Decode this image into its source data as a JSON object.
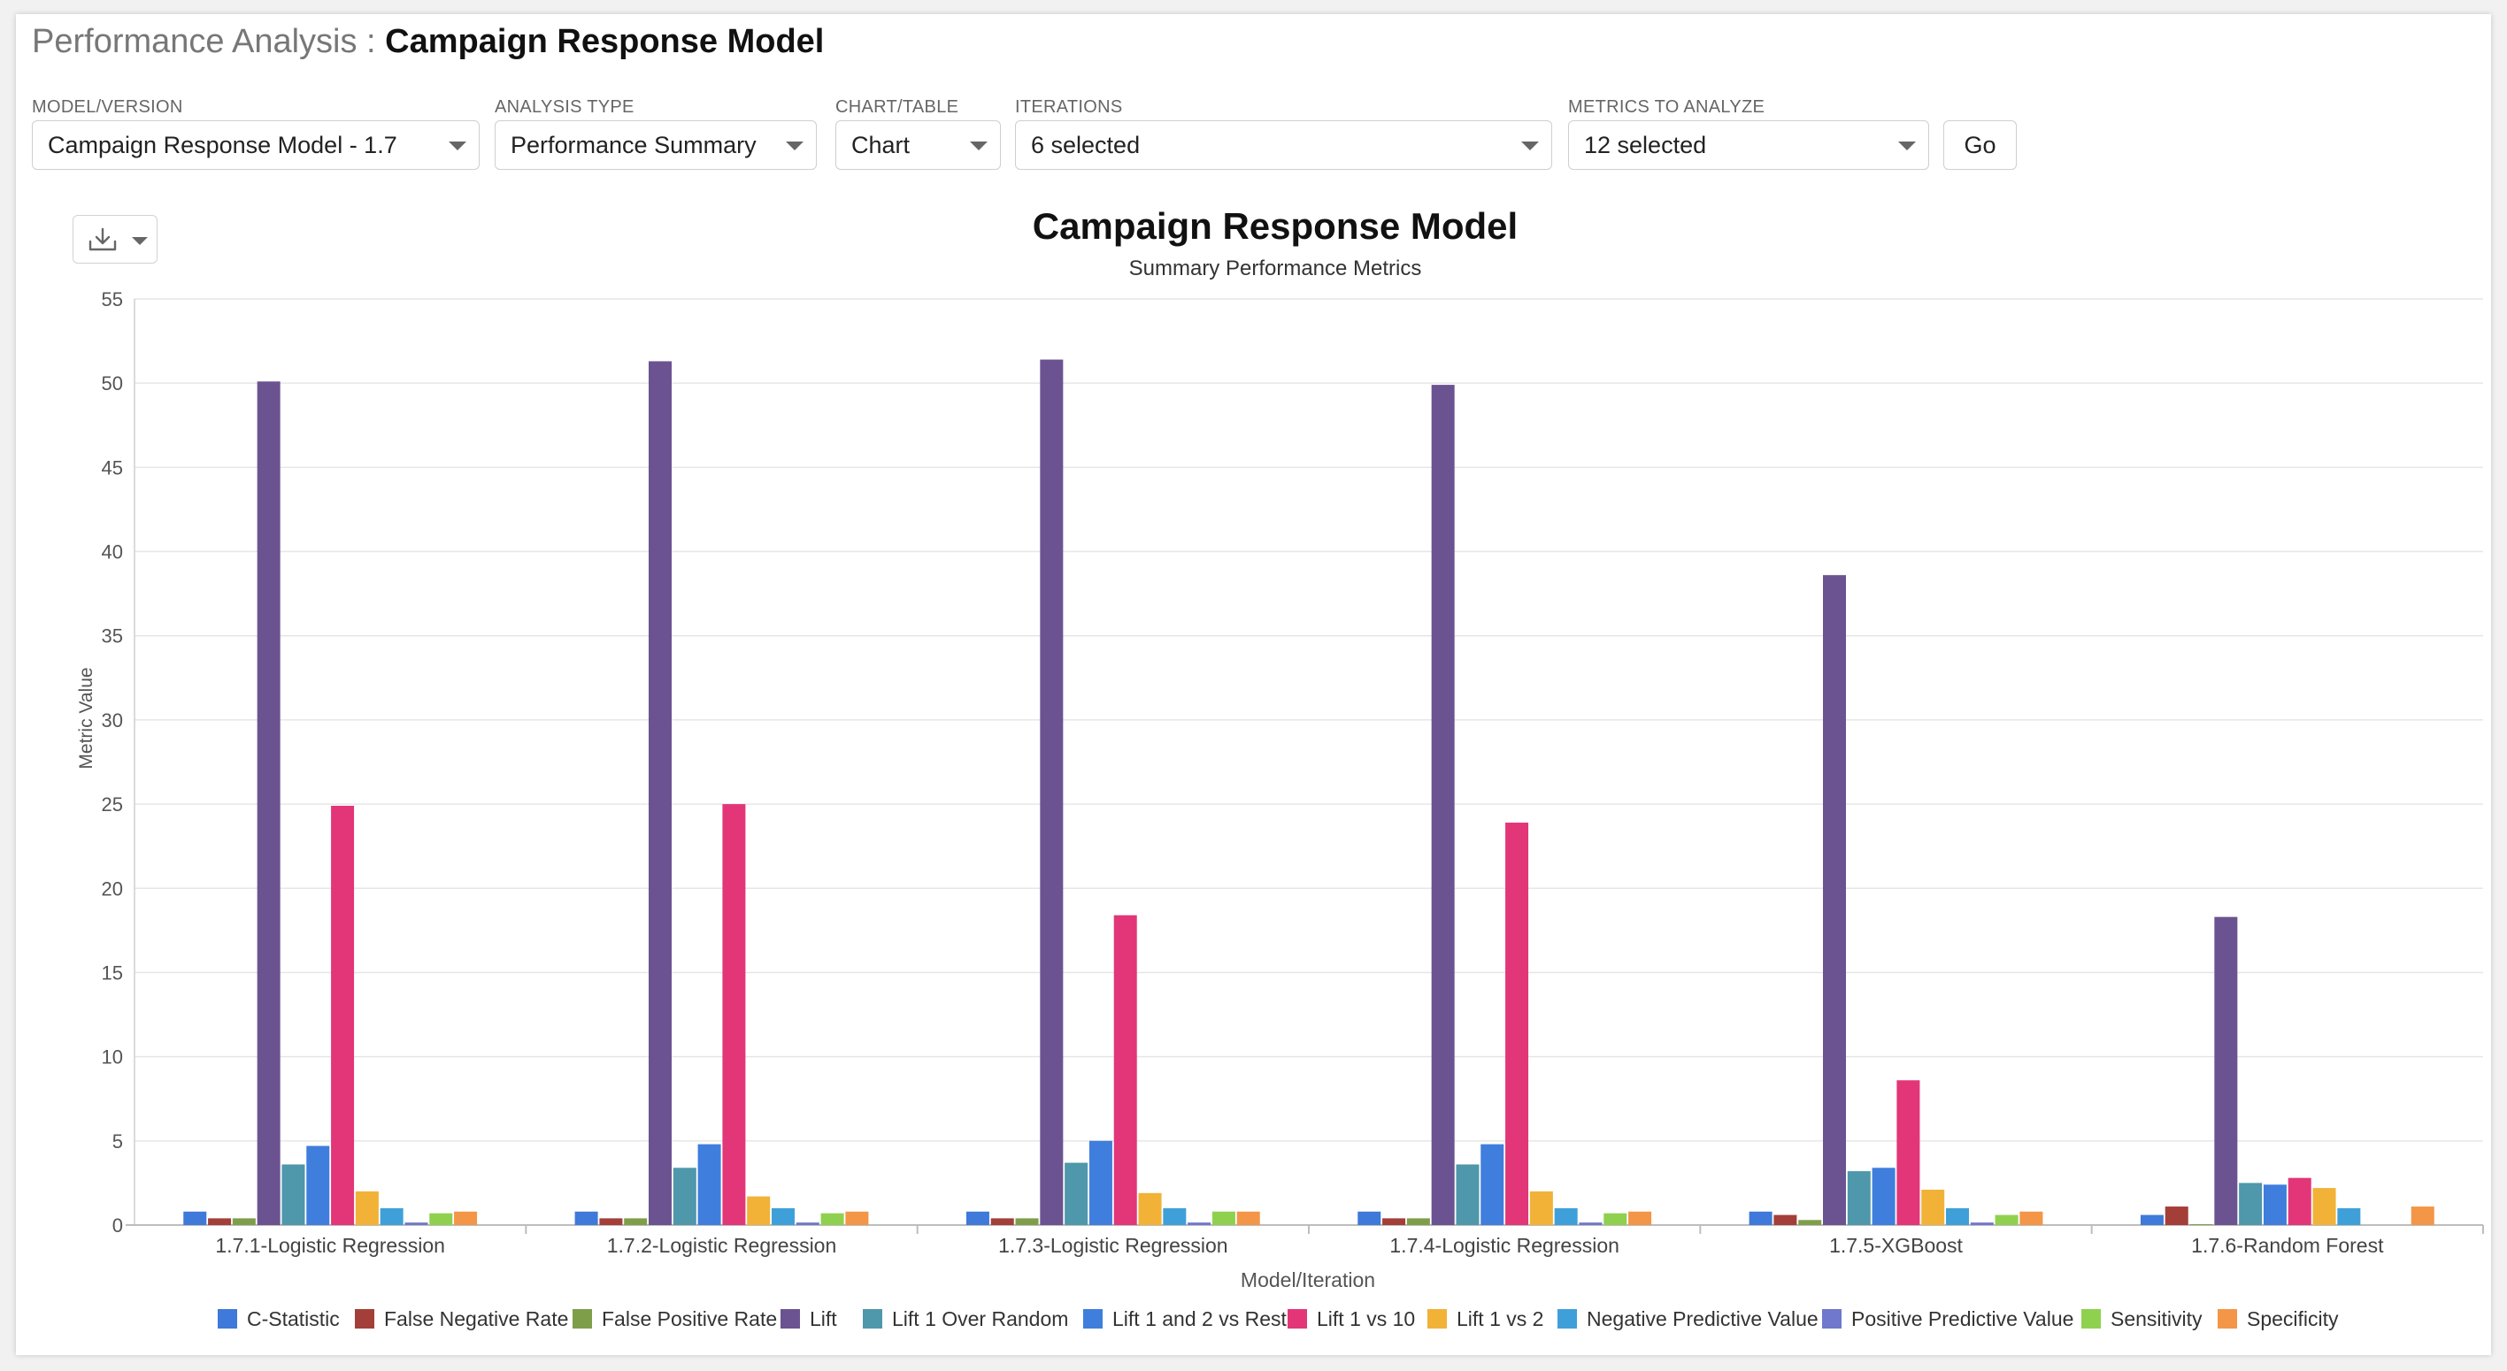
{
  "header": {
    "prefix": "Performance Analysis : ",
    "name": "Campaign Response Model"
  },
  "filters": {
    "model_version": {
      "label": "MODEL/VERSION",
      "value": "Campaign Response Model - 1.7"
    },
    "analysis_type": {
      "label": "ANALYSIS TYPE",
      "value": "Performance Summary"
    },
    "chart_table": {
      "label": "CHART/TABLE",
      "value": "Chart"
    },
    "iterations": {
      "label": "ITERATIONS",
      "value": "6 selected"
    },
    "metrics": {
      "label": "METRICS TO ANALYZE",
      "value": "12 selected"
    },
    "go_label": "Go"
  },
  "toolbar": {
    "download_icon": "download-icon"
  },
  "colors": [
    "#3f79d9",
    "#a33f38",
    "#7f9e4a",
    "#6b5391",
    "#4f97ab",
    "#3f7edd",
    "#e23679",
    "#f1b237",
    "#3fa0d9",
    "#6f78cc",
    "#8fd14f",
    "#f39647"
  ],
  "chart_data": {
    "type": "bar",
    "title": "Campaign Response Model",
    "subtitle": "Summary Performance Metrics",
    "xlabel": "Model/Iteration",
    "ylabel": "Metric Value",
    "ylim": [
      0,
      55
    ],
    "yticks": [
      0,
      5,
      10,
      15,
      20,
      25,
      30,
      35,
      40,
      45,
      50,
      55
    ],
    "grid": true,
    "legend": "bottom",
    "categories": [
      "1.7.1-Logistic Regression",
      "1.7.2-Logistic Regression",
      "1.7.3-Logistic Regression",
      "1.7.4-Logistic Regression",
      "1.7.5-XGBoost",
      "1.7.6-Random Forest"
    ],
    "series": [
      {
        "name": "C-Statistic",
        "values": [
          0.8,
          0.8,
          0.8,
          0.8,
          0.8,
          0.6
        ]
      },
      {
        "name": "False Negative Rate",
        "values": [
          0.4,
          0.4,
          0.4,
          0.4,
          0.6,
          1.1
        ]
      },
      {
        "name": "False Positive Rate",
        "values": [
          0.4,
          0.4,
          0.4,
          0.4,
          0.3,
          0.05
        ]
      },
      {
        "name": "Lift",
        "values": [
          50.1,
          51.3,
          51.4,
          49.9,
          38.6,
          18.3
        ]
      },
      {
        "name": "Lift 1 Over Random",
        "values": [
          3.6,
          3.4,
          3.7,
          3.6,
          3.2,
          2.5
        ]
      },
      {
        "name": "Lift 1 and 2 vs Rest",
        "values": [
          4.7,
          4.8,
          5.0,
          4.8,
          3.4,
          2.4
        ]
      },
      {
        "name": "Lift 1 vs 10",
        "values": [
          24.9,
          25.0,
          18.4,
          23.9,
          8.6,
          2.8
        ]
      },
      {
        "name": "Lift 1 vs 2",
        "values": [
          2.0,
          1.7,
          1.9,
          2.0,
          2.1,
          2.2
        ]
      },
      {
        "name": "Negative Predictive Value",
        "values": [
          1.0,
          1.0,
          1.0,
          1.0,
          1.0,
          1.0
        ]
      },
      {
        "name": "Positive Predictive Value",
        "values": [
          0.15,
          0.15,
          0.15,
          0.15,
          0.15,
          0.0
        ]
      },
      {
        "name": "Sensitivity",
        "values": [
          0.7,
          0.7,
          0.8,
          0.7,
          0.6,
          0.0
        ]
      },
      {
        "name": "Specificity",
        "values": [
          0.8,
          0.8,
          0.8,
          0.8,
          0.8,
          1.1
        ]
      }
    ]
  }
}
